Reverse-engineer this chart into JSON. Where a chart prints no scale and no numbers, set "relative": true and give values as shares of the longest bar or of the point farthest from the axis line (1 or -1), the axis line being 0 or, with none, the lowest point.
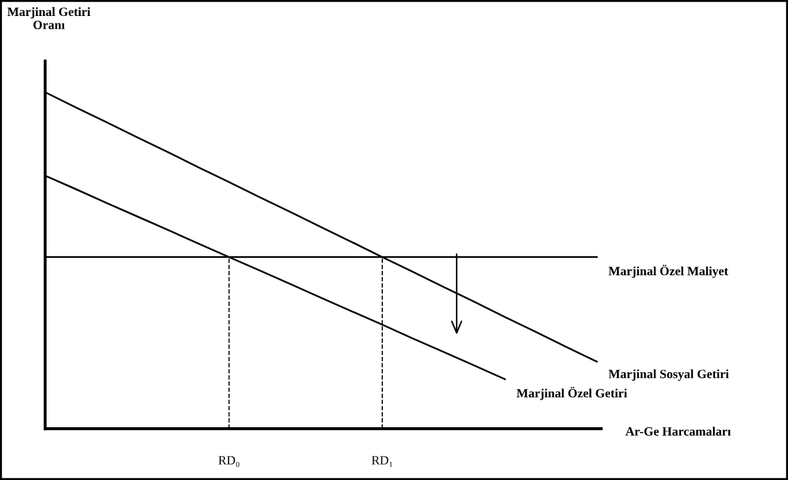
{
  "chart_data": {
    "type": "line",
    "relative": true,
    "annotations": [
      "Marjinal Getiri\nOranı"
    ],
    "xlabel": "Ar-Ge Harcamaları",
    "legend": false,
    "marker": "none",
    "line_style": "solid",
    "categories": [
      null,
      null,
      null,
      null,
      null,
      null,
      "RD₀",
      null,
      null,
      null,
      null,
      "RD₁",
      null,
      null,
      null,
      null,
      null,
      null,
      null
    ],
    "series": [
      {
        "name": "Marjinal Özel Maliyet",
        "color": "#000000",
        "values": [
          0.51,
          0.51,
          0.51,
          0.51,
          0.51,
          0.51,
          0.51,
          0.51,
          0.51,
          0.51,
          0.51,
          0.51,
          0.51,
          0.51,
          0.51,
          0.51,
          0.51,
          0.51,
          0.51
        ]
      },
      {
        "name": "Marjinal Sosyal Getiri",
        "color": "#000000",
        "values": [
          1.0,
          0.955,
          0.911,
          0.866,
          0.822,
          0.777,
          0.733,
          0.688,
          0.644,
          0.599,
          0.555,
          0.51,
          0.466,
          0.421,
          0.377,
          0.332,
          0.288,
          0.243,
          0.199
        ]
      },
      {
        "name": "Marjinal Özel Getiri",
        "color": "#000000",
        "values": [
          0.752,
          0.712,
          0.671,
          0.631,
          0.591,
          0.55,
          0.51,
          0.47,
          0.43,
          0.389,
          0.349,
          0.309,
          0.268,
          0.228,
          0.188,
          0.147,
          null,
          null,
          null
        ]
      }
    ],
    "ref_lines": [
      {
        "axis": "x",
        "value": "RD₀",
        "line_style": "dashed"
      },
      {
        "axis": "x",
        "value": "RD₁",
        "line_style": "dashed"
      }
    ]
  }
}
